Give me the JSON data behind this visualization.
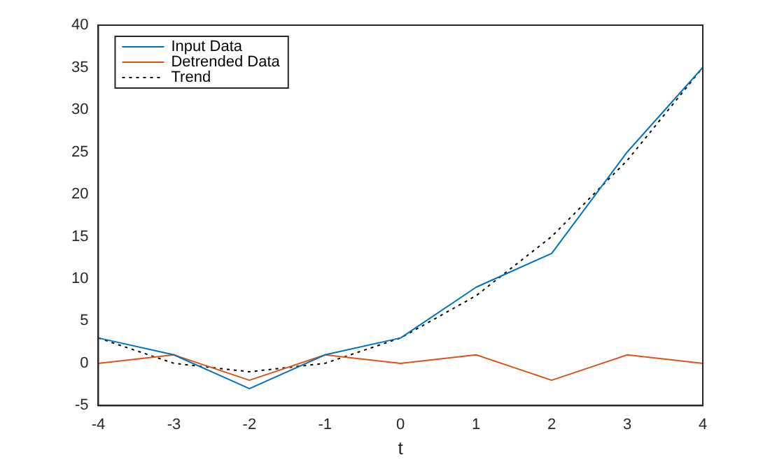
{
  "chart_data": {
    "type": "line",
    "xlabel": "t",
    "x": [
      -4,
      -3,
      -2,
      -1,
      0,
      1,
      2,
      3,
      4
    ],
    "series": [
      {
        "name": "Input Data",
        "color": "#0072bd",
        "values": [
          3,
          1,
          -3,
          1,
          3,
          9,
          13,
          25,
          35
        ]
      },
      {
        "name": "Detrended Data",
        "color": "#d95319",
        "values": [
          0,
          1,
          -2,
          1,
          0,
          1,
          -2,
          1,
          0
        ]
      },
      {
        "name": "Trend",
        "color": "#000000",
        "line_style": "dotted",
        "values": [
          3,
          0,
          -1,
          0,
          3,
          8,
          15,
          24,
          35
        ]
      }
    ],
    "xlim": [
      -4,
      4
    ],
    "xticks": [
      -4,
      -3,
      -2,
      -1,
      0,
      1,
      2,
      3,
      4
    ],
    "ylim": [
      -5,
      40
    ],
    "yticks": [
      -5,
      0,
      5,
      10,
      15,
      20,
      25,
      30,
      35,
      40
    ],
    "grid": false,
    "legend": "top left",
    "marker": "none",
    "line_style": "solid"
  }
}
